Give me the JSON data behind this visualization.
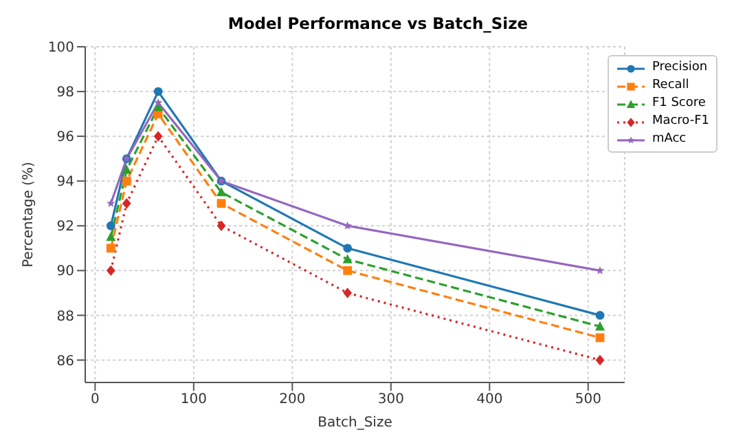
{
  "chart_data": {
    "type": "line",
    "title": "Model Performance vs Batch_Size",
    "xlabel": "Batch_Size",
    "ylabel": "Percentage (%)",
    "x": [
      16,
      32,
      64,
      128,
      256,
      512
    ],
    "series": [
      {
        "name": "Precision",
        "color": "#1f77b4",
        "marker": "circle",
        "line_style": "solid",
        "values": [
          92,
          95,
          98,
          94,
          91,
          88
        ]
      },
      {
        "name": "Recall",
        "color": "#ff7f0e",
        "marker": "square",
        "line_style": "dashed",
        "values": [
          91,
          94,
          97,
          93,
          90,
          87
        ]
      },
      {
        "name": "F1 Score",
        "color": "#2ca02c",
        "marker": "triangle",
        "line_style": "dashed",
        "values": [
          91.5,
          94.5,
          97.3,
          93.5,
          90.5,
          87.5
        ]
      },
      {
        "name": "Macro-F1",
        "color": "#d62728",
        "marker": "diamond",
        "line_style": "dotted",
        "values": [
          90,
          93,
          96,
          92,
          89,
          86
        ]
      },
      {
        "name": "mAcc",
        "color": "#9467bd",
        "marker": "star",
        "line_style": "solid",
        "values": [
          93,
          95,
          97.5,
          94,
          92,
          90
        ]
      }
    ],
    "xlim": [
      -10,
      537
    ],
    "xticks": [
      0,
      100,
      200,
      300,
      400,
      500
    ],
    "ylim": [
      85,
      100
    ],
    "yticks": [
      86,
      88,
      90,
      92,
      94,
      96,
      98,
      100
    ],
    "grid": true,
    "legend": "top right"
  }
}
